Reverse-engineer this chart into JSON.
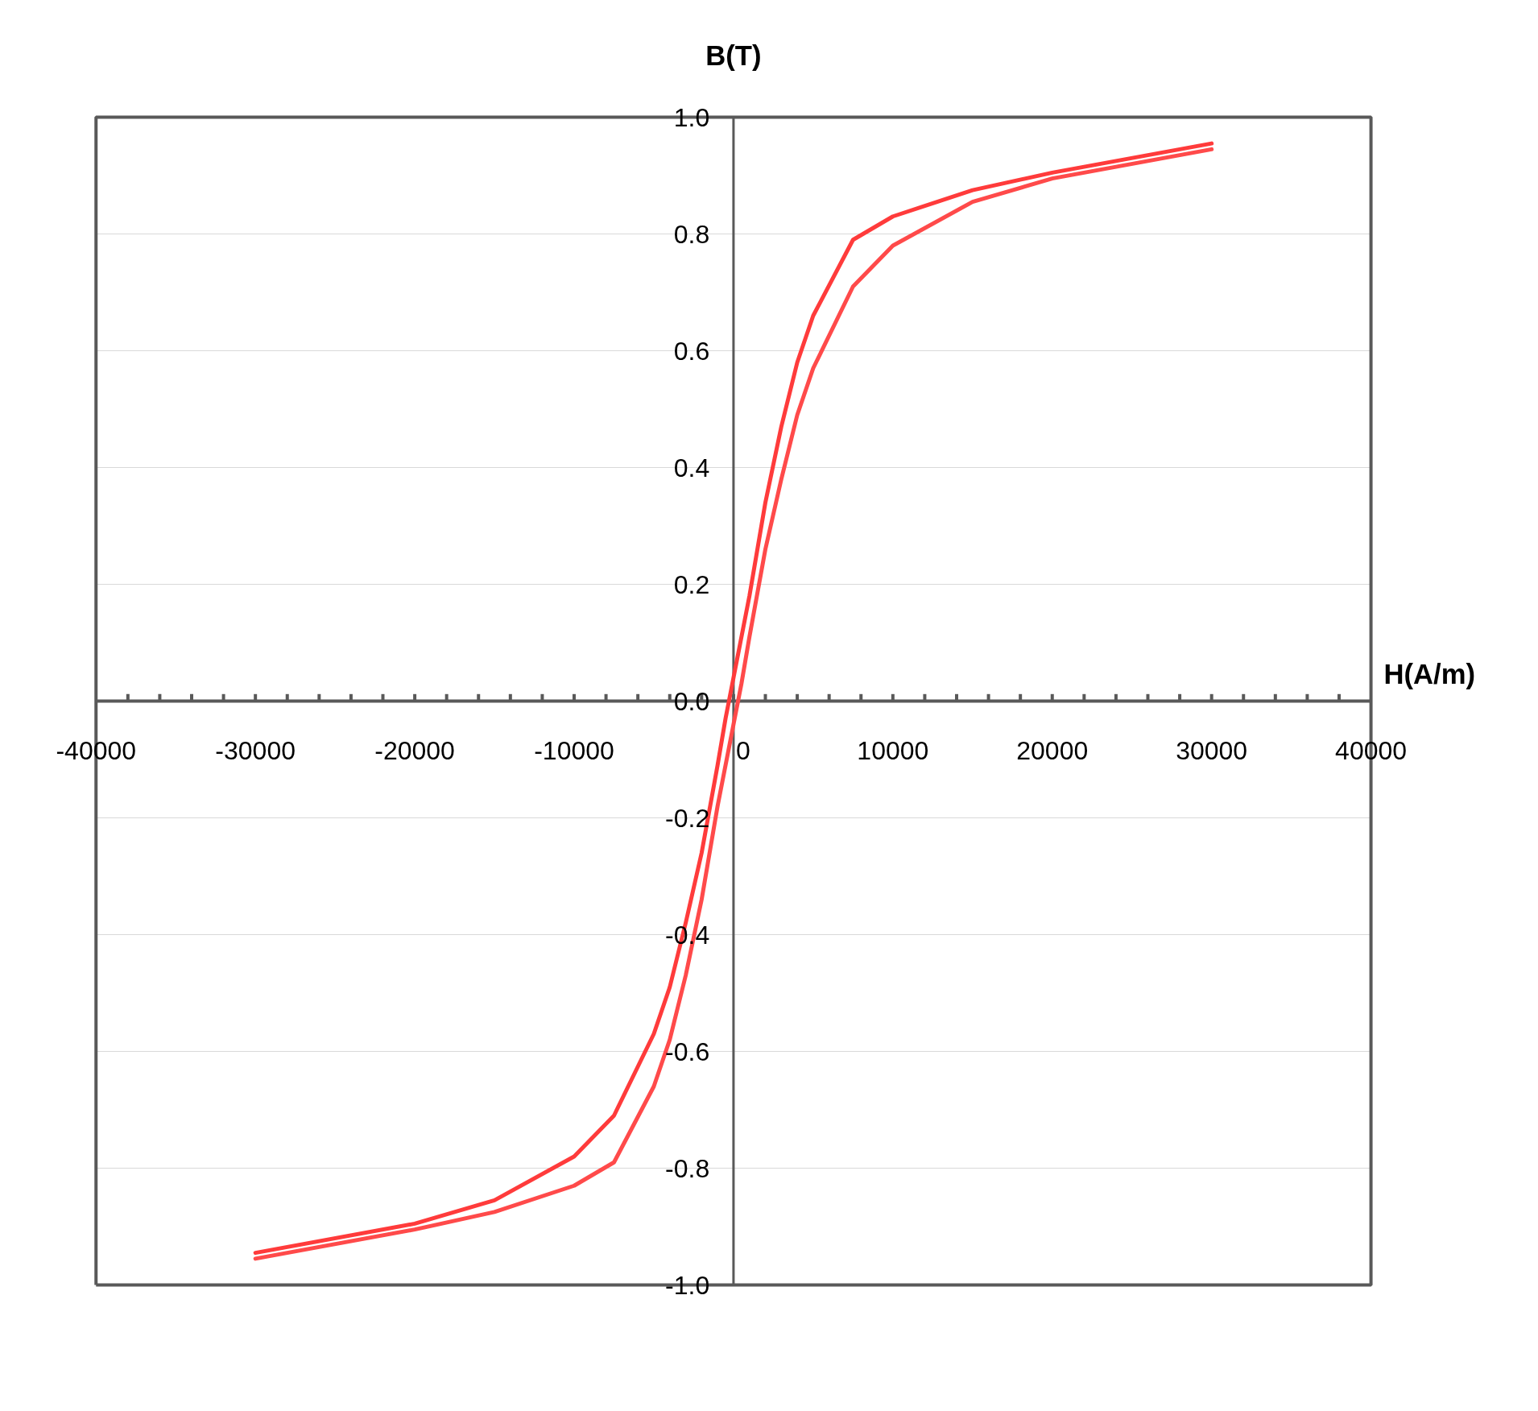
{
  "chart_data": {
    "type": "line",
    "xlabel": "H(A/m)",
    "ylabel": "B(T)",
    "xlim": [
      -40000,
      40000
    ],
    "ylim": [
      -1,
      1
    ],
    "xticks": [
      -40000,
      -30000,
      -20000,
      -10000,
      0,
      10000,
      20000,
      30000,
      40000
    ],
    "yticks": [
      {
        "value": -1,
        "label": "-1.0"
      },
      {
        "value": -0.8,
        "label": "-0.8"
      },
      {
        "value": -0.6,
        "label": "-0.6"
      },
      {
        "value": -0.4,
        "label": "-0.4"
      },
      {
        "value": -0.2,
        "label": "-0.2"
      },
      {
        "value": 0,
        "label": "0.0"
      },
      {
        "value": 0.2,
        "label": "0.2"
      },
      {
        "value": 0.4,
        "label": "0.4"
      },
      {
        "value": 0.6,
        "label": "0.6"
      },
      {
        "value": 0.8,
        "label": "0.8"
      },
      {
        "value": 1,
        "label": "1.0"
      }
    ],
    "grid": "y",
    "marker": "none",
    "line_style": "solid",
    "series": [
      {
        "color": "#ff3b3b",
        "x": [
          30000,
          20000,
          15000,
          10000,
          7500,
          5000,
          4000,
          3000,
          2000,
          1000,
          0,
          -500,
          -1000,
          -2000,
          -3000,
          -4000,
          -5000,
          -7500,
          -10000,
          -15000,
          -20000,
          -30000
        ],
        "values": [
          0.955,
          0.905,
          0.875,
          0.83,
          0.79,
          0.66,
          0.58,
          0.47,
          0.34,
          0.18,
          0.04,
          -0.03,
          -0.11,
          -0.26,
          -0.38,
          -0.49,
          -0.57,
          -0.71,
          -0.78,
          -0.855,
          -0.895,
          -0.945
        ]
      },
      {
        "color": "#ff4a4a",
        "x": [
          -30000,
          -20000,
          -15000,
          -10000,
          -7500,
          -5000,
          -4000,
          -3000,
          -2000,
          -1000,
          0,
          500,
          1000,
          2000,
          3000,
          4000,
          5000,
          7500,
          10000,
          15000,
          20000,
          30000
        ],
        "values": [
          -0.955,
          -0.905,
          -0.875,
          -0.83,
          -0.79,
          -0.66,
          -0.58,
          -0.47,
          -0.34,
          -0.18,
          -0.04,
          0.03,
          0.11,
          0.26,
          0.38,
          0.49,
          0.57,
          0.71,
          0.78,
          0.855,
          0.895,
          0.945
        ]
      }
    ]
  }
}
